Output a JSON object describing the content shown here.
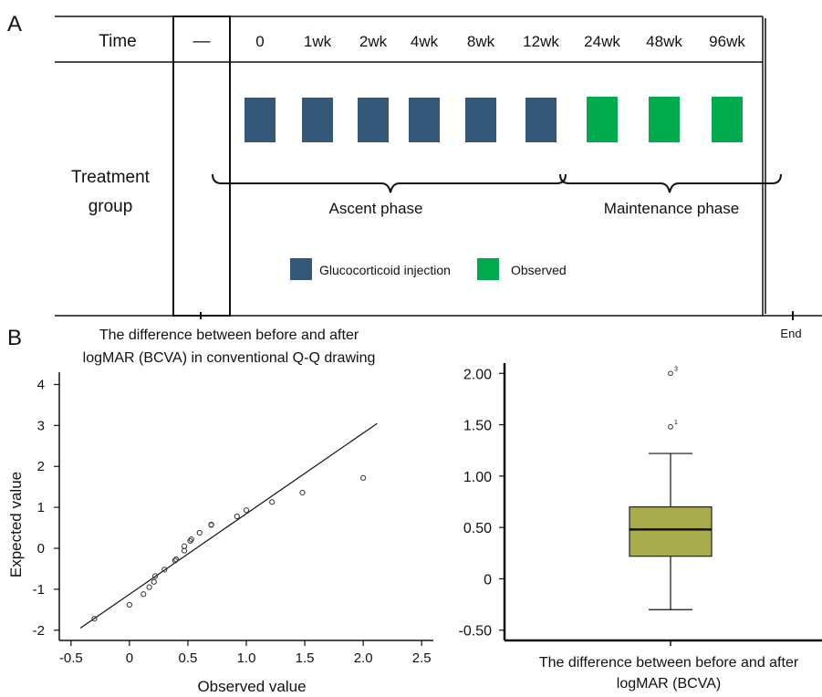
{
  "panel_a": {
    "label": "A",
    "time_label": "Time",
    "control_marker": "—",
    "timepoints": [
      "0",
      "1wk",
      "2wk",
      "4wk",
      "8wk",
      "12wk",
      "24wk",
      "48wk",
      "96wk"
    ],
    "group_label_line1": "Treatment",
    "group_label_line2": "group",
    "phase_ascent": "Ascent phase",
    "phase_maintenance": "Maintenance phase",
    "legend_injection": "Glucocorticoid injection",
    "legend_observed": "Observed",
    "end_label": "End",
    "colors": {
      "injection": "#345878",
      "observed": "#00ab4e"
    },
    "block_types": [
      "injection",
      "injection",
      "injection",
      "injection",
      "injection",
      "injection",
      "observed",
      "observed",
      "observed"
    ]
  },
  "panel_b": {
    "label": "B",
    "qq_title_line1": "The difference between before and after",
    "qq_title_line2": "logMAR (BCVA) in conventional Q-Q drawing",
    "box_xlabel_line1": "The difference between before and after",
    "box_xlabel_line2": "logMAR (BCVA)"
  },
  "chart_data": [
    {
      "type": "scatter",
      "title": "The difference between before and after logMAR (BCVA) in conventional Q-Q drawing",
      "xlabel": "Observed value",
      "ylabel": "Expected value",
      "xlim": [
        -0.6,
        2.6
      ],
      "ylim": [
        -2.25,
        4.3
      ],
      "xticks": [
        "-0.5",
        "0",
        "0.5",
        "1.0",
        "1.5",
        "2.0",
        "2.5"
      ],
      "xtick_values": [
        -0.5,
        0,
        0.5,
        1.0,
        1.5,
        2.0,
        2.5
      ],
      "yticks": [
        "-2",
        "-1",
        "0",
        "1",
        "2",
        "3",
        "4"
      ],
      "ytick_values": [
        -2,
        -1,
        0,
        1,
        2,
        3,
        4
      ],
      "reference_line": [
        [
          -0.42,
          -1.95
        ],
        [
          2.12,
          3.05
        ]
      ],
      "points": [
        [
          -0.3,
          -1.72
        ],
        [
          0.0,
          -1.38
        ],
        [
          0.12,
          -1.12
        ],
        [
          0.17,
          -0.95
        ],
        [
          0.21,
          -0.82
        ],
        [
          0.22,
          -0.68
        ],
        [
          0.3,
          -0.52
        ],
        [
          0.39,
          -0.3
        ],
        [
          0.4,
          -0.27
        ],
        [
          0.47,
          -0.06
        ],
        [
          0.47,
          0.05
        ],
        [
          0.52,
          0.18
        ],
        [
          0.53,
          0.22
        ],
        [
          0.6,
          0.38
        ],
        [
          0.7,
          0.57
        ],
        [
          0.7,
          0.58
        ],
        [
          0.92,
          0.78
        ],
        [
          1.0,
          0.93
        ],
        [
          1.22,
          1.13
        ],
        [
          1.48,
          1.36
        ],
        [
          2.0,
          1.72
        ]
      ]
    },
    {
      "type": "box",
      "xlabel": "The difference between before and after logMAR (BCVA)",
      "ylim": [
        -0.6,
        2.1
      ],
      "yticks": [
        "2.00",
        "1.50",
        "1.00",
        "0.50",
        "0",
        "-0.50"
      ],
      "ytick_values": [
        2.0,
        1.5,
        1.0,
        0.5,
        0,
        -0.5
      ],
      "whisker_low": -0.3,
      "q1": 0.22,
      "median": 0.48,
      "q3": 0.7,
      "whisker_high": 1.22,
      "outliers": [
        {
          "value": 2.0,
          "label": "3"
        },
        {
          "value": 1.48,
          "label": "1"
        }
      ],
      "box_color": "#a9ac4c"
    }
  ]
}
